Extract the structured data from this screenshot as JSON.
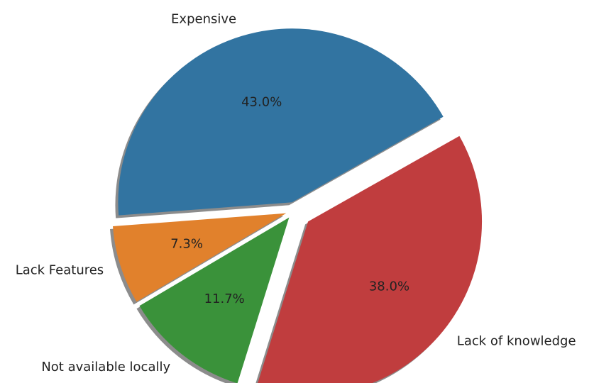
{
  "chart_data": {
    "type": "pie",
    "categories": [
      "Expensive",
      "Lack Features",
      "Not available locally",
      "Lack of knowledge"
    ],
    "values": [
      43.0,
      7.3,
      11.7,
      38.0
    ],
    "value_labels": [
      "43.0%",
      "7.3%",
      "11.7%",
      "38.0%"
    ],
    "colors": [
      "#3274a1",
      "#e1812c",
      "#3a923a",
      "#c03d3e"
    ],
    "shadow": true
  }
}
